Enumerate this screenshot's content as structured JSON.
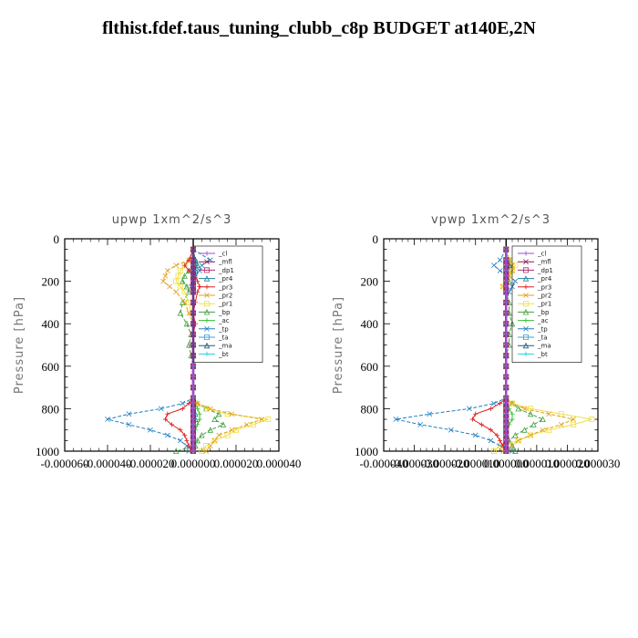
{
  "title": "flthist.fdef.taus_tuning_clubb_c8p  BUDGET at140E,2N",
  "chart_data": [
    {
      "type": "line",
      "title": "upwp   1xm^2/s^3",
      "ylabel": "Pressure [hPa]",
      "ylim": [
        1000,
        0
      ],
      "xlim": [
        -6e-05,
        4e-05
      ],
      "yticks": [
        "0",
        "200",
        "400",
        "600",
        "800",
        "1000"
      ],
      "xticks": [
        "-0.000060",
        "-0.000040",
        "-0.000020",
        "0.000000",
        "0.000020",
        "0.000040"
      ],
      "legend_position": "top-right",
      "y": [
        50,
        100,
        125,
        150,
        175,
        200,
        225,
        250,
        300,
        350,
        400,
        450,
        500,
        550,
        600,
        650,
        700,
        750,
        775,
        800,
        825,
        850,
        875,
        900,
        925,
        950,
        975,
        1000
      ],
      "series": [
        {
          "name": "_cl",
          "color": "#9a4fd0",
          "values": [
            0,
            0,
            0,
            0,
            0,
            0,
            0,
            0,
            0,
            0,
            0,
            0,
            0,
            0,
            0,
            0,
            0,
            0,
            0,
            0,
            0,
            0,
            0,
            0,
            0,
            0,
            0,
            0
          ]
        },
        {
          "name": "_mfl",
          "color": "#8b1a50",
          "values": [
            0,
            0,
            0,
            0,
            0,
            0,
            0,
            0,
            0,
            0,
            0,
            0,
            0,
            0,
            0,
            0,
            0,
            0,
            0,
            0,
            0,
            0,
            0,
            0,
            0,
            0,
            0,
            0
          ]
        },
        {
          "name": "_dp1",
          "color": "#b03070",
          "values": [
            0,
            0,
            0,
            0,
            0,
            0,
            0,
            0,
            0,
            0,
            0,
            0,
            0,
            0,
            0,
            0,
            0,
            0,
            0,
            0,
            0,
            0,
            0,
            0,
            0,
            0,
            0,
            0
          ]
        },
        {
          "name": "_pr4",
          "color": "#1e7fa0",
          "values": [
            0,
            1e-06,
            2e-06,
            1e-06,
            0,
            0,
            0,
            0,
            0,
            0,
            0,
            0,
            0,
            0,
            0,
            0,
            0,
            0,
            0,
            0,
            1e-06,
            1e-06,
            0,
            0,
            0,
            0,
            0,
            0
          ]
        },
        {
          "name": "_pr3",
          "color": "#e02020",
          "values": [
            0,
            -2e-06,
            -4e-06,
            -2e-06,
            1e-06,
            2e-06,
            3e-06,
            2e-06,
            1e-06,
            0,
            1e-06,
            0,
            0,
            0,
            0,
            0,
            0,
            0,
            -2e-06,
            -5e-06,
            -1.2e-05,
            -1.3e-05,
            -1e-05,
            -6e-06,
            -4e-06,
            -3e-06,
            -2e-06,
            -1e-06
          ]
        },
        {
          "name": "_pr2",
          "color": "#e0a020",
          "values": [
            0,
            -2e-06,
            -8e-06,
            -1.2e-05,
            -1.3e-05,
            -1.4e-05,
            -1.1e-05,
            -8e-06,
            -4e-06,
            -2e-06,
            0,
            0,
            0,
            0,
            0,
            0,
            0,
            0,
            2e-06,
            8e-06,
            1.8e-05,
            3.2e-05,
            2.5e-05,
            1.8e-05,
            1.2e-05,
            1e-05,
            8e-06,
            6e-06
          ]
        },
        {
          "name": "_pr1",
          "color": "#f0e040",
          "values": [
            0,
            -1e-06,
            -4e-06,
            -6e-06,
            -7e-06,
            -8e-06,
            -6e-06,
            -4e-06,
            -2e-06,
            -1e-06,
            0,
            0,
            0,
            0,
            0,
            0,
            0,
            0,
            1e-06,
            6e-06,
            1.6e-05,
            3.5e-05,
            2.8e-05,
            2e-05,
            1.6e-05,
            1e-05,
            6e-06,
            4e-06
          ]
        },
        {
          "name": "_bp",
          "color": "#40a040",
          "values": [
            0,
            1e-06,
            2e-06,
            -2e-06,
            -4e-06,
            -5e-06,
            -3e-06,
            -2e-06,
            -5e-06,
            -6e-06,
            -3e-06,
            -1e-06,
            -2e-06,
            -1e-06,
            0,
            0,
            0,
            0,
            2e-06,
            6e-06,
            1.2e-05,
            1e-05,
            1.4e-05,
            8e-06,
            4e-06,
            2e-06,
            1e-06,
            -8e-06
          ]
        },
        {
          "name": "_ac",
          "color": "#30c030",
          "values": [
            0,
            1e-06,
            1e-06,
            1e-06,
            0,
            0,
            0,
            0,
            0,
            0,
            0,
            0,
            0,
            0,
            0,
            0,
            0,
            0,
            1e-06,
            2e-06,
            3e-06,
            3e-06,
            2e-06,
            1e-06,
            0,
            0,
            0,
            0
          ]
        },
        {
          "name": "_tp",
          "color": "#2080c0",
          "values": [
            0,
            8e-06,
            4e-06,
            3e-06,
            1e-06,
            0,
            -1e-06,
            0,
            0,
            0,
            0,
            0,
            0,
            0,
            0,
            0,
            0,
            0,
            -5e-06,
            -1.5e-05,
            -3e-05,
            -4e-05,
            -3e-05,
            -2e-05,
            -1.2e-05,
            -6e-06,
            -3e-06,
            -2e-06
          ]
        },
        {
          "name": "_ta",
          "color": "#40a0d0",
          "values": [
            0,
            -1e-06,
            0,
            1e-06,
            0,
            0,
            0,
            0,
            0,
            0,
            0,
            0,
            0,
            0,
            0,
            0,
            0,
            0,
            0,
            0,
            0,
            0,
            0,
            0,
            0,
            0,
            0,
            0
          ]
        },
        {
          "name": "_ma",
          "color": "#1a5a7a",
          "values": [
            0,
            0,
            0,
            0,
            0,
            0,
            0,
            0,
            0,
            0,
            0,
            0,
            0,
            0,
            0,
            0,
            0,
            0,
            0,
            0,
            0,
            0,
            0,
            0,
            0,
            0,
            0,
            0
          ]
        },
        {
          "name": "_bt",
          "color": "#20d0e0",
          "values": [
            0,
            0,
            0,
            0,
            0,
            0,
            0,
            0,
            0,
            0,
            0,
            0,
            0,
            0,
            0,
            0,
            0,
            0,
            0,
            0,
            0,
            0,
            0,
            0,
            0,
            0,
            0,
            0
          ]
        }
      ]
    },
    {
      "type": "line",
      "title": "vpwp   1xm^2/s^3",
      "ylabel": "Pressure [hPa]",
      "ylim": [
        1000,
        0
      ],
      "xlim": [
        -4e-05,
        3e-05
      ],
      "yticks": [
        "0",
        "200",
        "400",
        "600",
        "800",
        "1000"
      ],
      "xticks": [
        "-0.000040",
        "-0.000030",
        "-0.000020",
        "-0.000010",
        "0.000000",
        "0.000010",
        "0.000020",
        "0.000030"
      ],
      "legend_position": "top-right",
      "y": [
        50,
        100,
        125,
        150,
        175,
        200,
        225,
        250,
        300,
        350,
        400,
        450,
        500,
        550,
        600,
        650,
        700,
        750,
        775,
        800,
        825,
        850,
        875,
        900,
        925,
        950,
        975,
        1000
      ],
      "series": [
        {
          "name": "_cl",
          "color": "#9a4fd0",
          "values": [
            0,
            0,
            0,
            0,
            0,
            0,
            0,
            0,
            0,
            0,
            0,
            0,
            0,
            0,
            0,
            0,
            0,
            0,
            0,
            0,
            0,
            0,
            0,
            0,
            0,
            0,
            0,
            0
          ]
        },
        {
          "name": "_mfl",
          "color": "#8b1a50",
          "values": [
            0,
            0,
            0,
            0,
            0,
            0,
            0,
            0,
            0,
            0,
            0,
            0,
            0,
            0,
            0,
            0,
            0,
            0,
            0,
            0,
            0,
            0,
            0,
            0,
            0,
            0,
            0,
            0
          ]
        },
        {
          "name": "_dp1",
          "color": "#b03070",
          "values": [
            0,
            0,
            0,
            0,
            0,
            0,
            0,
            0,
            0,
            0,
            0,
            0,
            0,
            0,
            0,
            0,
            0,
            0,
            0,
            0,
            0,
            0,
            0,
            0,
            0,
            0,
            0,
            0
          ]
        },
        {
          "name": "_pr4",
          "color": "#1e7fa0",
          "values": [
            0,
            0,
            1e-06,
            0,
            0,
            0,
            0,
            0,
            0,
            0,
            0,
            0,
            0,
            0,
            0,
            0,
            0,
            0,
            0,
            0,
            0,
            0,
            0,
            0,
            0,
            0,
            0,
            0
          ]
        },
        {
          "name": "_pr3",
          "color": "#e02020",
          "values": [
            0,
            0,
            1e-06,
            0,
            0,
            0,
            0,
            0,
            0,
            0,
            0,
            0,
            0,
            0,
            0,
            0,
            0,
            0,
            -2e-06,
            -5e-06,
            -1e-05,
            -1.1e-05,
            -8e-06,
            -5e-06,
            -3e-06,
            -2e-06,
            -1e-06,
            0
          ]
        },
        {
          "name": "_pr2",
          "color": "#e0a020",
          "values": [
            0,
            1e-06,
            2e-06,
            2e-06,
            1e-06,
            0,
            -1e-06,
            0,
            0,
            0,
            0,
            0,
            0,
            0,
            0,
            0,
            0,
            0,
            2e-06,
            6e-06,
            1.4e-05,
            2.2e-05,
            1.8e-05,
            1.2e-05,
            8e-06,
            4e-06,
            2e-06,
            -1e-06
          ]
        },
        {
          "name": "_pr1",
          "color": "#f0e040",
          "values": [
            0,
            1e-06,
            3e-06,
            2e-06,
            1e-06,
            0,
            -1e-06,
            0,
            0,
            0,
            0,
            0,
            0,
            0,
            0,
            0,
            0,
            0,
            2e-06,
            8e-06,
            1.8e-05,
            2.8e-05,
            2.2e-05,
            1.4e-05,
            8e-06,
            4e-06,
            -2e-06,
            -4e-06
          ]
        },
        {
          "name": "_bp",
          "color": "#40a040",
          "values": [
            0,
            1e-06,
            1e-06,
            1e-06,
            0,
            1e-06,
            0,
            0,
            1e-06,
            1e-06,
            2e-06,
            1e-06,
            1e-06,
            0,
            0,
            0,
            0,
            0,
            2e-06,
            4e-06,
            8e-06,
            1.2e-05,
            9e-06,
            6e-06,
            3e-06,
            1e-06,
            2e-06,
            3e-06
          ]
        },
        {
          "name": "_ac",
          "color": "#30c030",
          "values": [
            0,
            0,
            1e-06,
            0,
            0,
            0,
            0,
            0,
            0,
            0,
            0,
            0,
            0,
            0,
            0,
            0,
            0,
            0,
            0,
            1e-06,
            2e-06,
            2e-06,
            1e-06,
            0,
            0,
            0,
            0,
            0
          ]
        },
        {
          "name": "_tp",
          "color": "#2080c0",
          "values": [
            0,
            -2e-06,
            -4e-06,
            -2e-06,
            1e-06,
            3e-06,
            2e-06,
            1e-06,
            0,
            0,
            0,
            0,
            0,
            0,
            0,
            0,
            0,
            0,
            -4e-06,
            -1.2e-05,
            -2.5e-05,
            -3.6e-05,
            -2.8e-05,
            -1.8e-05,
            -1e-05,
            -5e-06,
            -2e-06,
            2e-06
          ]
        },
        {
          "name": "_ta",
          "color": "#40a0d0",
          "values": [
            0,
            0,
            0,
            0,
            0,
            0,
            0,
            0,
            0,
            0,
            0,
            0,
            0,
            0,
            0,
            0,
            0,
            0,
            0,
            0,
            0,
            0,
            0,
            0,
            0,
            0,
            0,
            0
          ]
        },
        {
          "name": "_ma",
          "color": "#1a5a7a",
          "values": [
            0,
            0,
            0,
            0,
            0,
            0,
            0,
            0,
            0,
            0,
            0,
            0,
            0,
            0,
            0,
            0,
            0,
            0,
            0,
            0,
            0,
            0,
            0,
            0,
            0,
            0,
            0,
            0
          ]
        },
        {
          "name": "_bt",
          "color": "#20d0e0",
          "values": [
            0,
            0,
            0,
            0,
            0,
            0,
            0,
            0,
            0,
            0,
            0,
            0,
            0,
            0,
            0,
            0,
            0,
            0,
            0,
            0,
            0,
            0,
            0,
            0,
            0,
            0,
            0,
            0
          ]
        }
      ]
    }
  ]
}
